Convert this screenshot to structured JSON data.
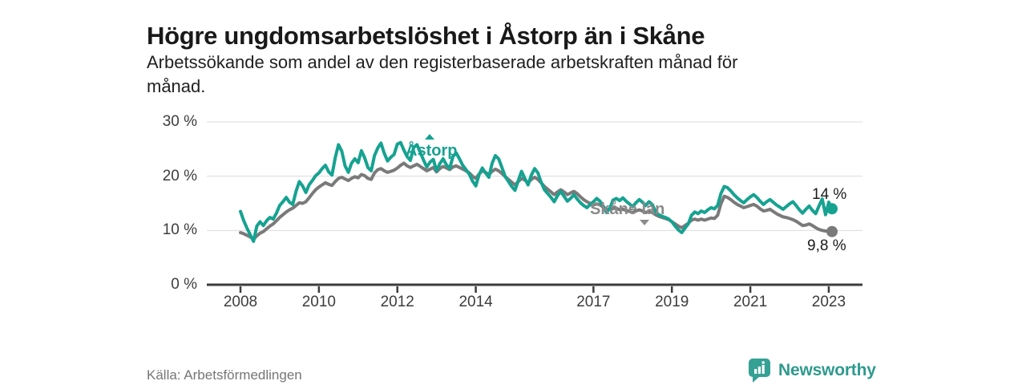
{
  "header": {
    "title": "Högre ungdomsarbetslöshet i Åstorp än i Skåne",
    "subtitle_lines": [
      "Arbetssökande som andel av den registerbaserade arbetskraften månad för",
      "månad."
    ]
  },
  "chart_data": {
    "type": "line",
    "title": "Högre ungdomsarbetslöshet i Åstorp än i Skåne",
    "xlabel": "",
    "ylabel": "",
    "ylim": [
      0,
      30
    ],
    "grid": "horizontal",
    "legend_position": "inline-labels",
    "frequency": "monthly",
    "start": "2008-01",
    "start_year": 2008,
    "colors": {
      "grid": "#dcdcdc",
      "axis": "#3c3c3c",
      "accent_teal": "#16a291",
      "line_gray": "#7a7a7a"
    },
    "y_ticks": [
      {
        "label": "30 %",
        "value": 30
      },
      {
        "label": "20 %",
        "value": 20
      },
      {
        "label": "10 %",
        "value": 10
      },
      {
        "label": "0 %",
        "value": 0
      }
    ],
    "x_ticks": [
      {
        "label": "2008",
        "year": 2008
      },
      {
        "label": "2010",
        "year": 2010
      },
      {
        "label": "2012",
        "year": 2012
      },
      {
        "label": "2014",
        "year": 2014
      },
      {
        "label": "2017",
        "year": 2017
      },
      {
        "label": "2019",
        "year": 2019
      },
      {
        "label": "2021",
        "year": 2021
      },
      {
        "label": "2023",
        "year": 2023
      }
    ],
    "series": [
      {
        "name": "Skåne län",
        "color": "#7a7a7a",
        "end_label": "9,8 %",
        "end_value": 9.8,
        "values": [
          9.6,
          9.4,
          9.1,
          8.8,
          8.4,
          9.0,
          9.5,
          9.8,
          10.3,
          10.8,
          11.2,
          11.8,
          12.4,
          12.9,
          13.4,
          13.8,
          14.1,
          14.6,
          15.1,
          15.0,
          15.3,
          16.0,
          16.8,
          17.5,
          18.0,
          18.4,
          18.8,
          18.5,
          18.3,
          19.0,
          19.6,
          19.8,
          19.5,
          19.2,
          19.6,
          19.9,
          19.7,
          20.3,
          20.1,
          19.6,
          19.4,
          20.6,
          21.2,
          21.4,
          21.0,
          20.7,
          20.9,
          21.1,
          21.5,
          22.0,
          22.4,
          21.9,
          21.6,
          21.9,
          22.2,
          21.8,
          21.4,
          21.0,
          21.3,
          21.6,
          20.8,
          21.4,
          21.8,
          21.5,
          21.2,
          21.7,
          21.9,
          21.6,
          21.3,
          21.0,
          20.6,
          20.0,
          19.6,
          20.4,
          21.0,
          20.7,
          20.3,
          20.9,
          21.3,
          21.0,
          20.5,
          19.9,
          19.4,
          18.9,
          18.4,
          19.0,
          19.6,
          19.3,
          18.8,
          19.4,
          19.8,
          19.4,
          18.8,
          18.1,
          17.6,
          17.1,
          16.6,
          17.1,
          17.5,
          17.1,
          16.6,
          16.9,
          17.2,
          16.8,
          16.2,
          15.7,
          15.3,
          15.0,
          14.7,
          14.9,
          14.7,
          14.3,
          13.8,
          14.0,
          14.3,
          14.1,
          13.8,
          13.9,
          13.7,
          13.5,
          13.3,
          13.6,
          13.8,
          13.6,
          13.3,
          13.5,
          13.3,
          12.9,
          12.6,
          12.4,
          12.2,
          12.0,
          11.6,
          11.2,
          10.8,
          10.5,
          10.9,
          11.3,
          11.9,
          12.1,
          11.9,
          12.1,
          11.9,
          12.1,
          12.3,
          12.2,
          12.8,
          14.9,
          16.3,
          16.1,
          15.7,
          15.2,
          14.8,
          14.5,
          14.2,
          14.4,
          14.6,
          14.8,
          14.5,
          14.0,
          13.6,
          13.7,
          13.9,
          13.5,
          13.1,
          12.8,
          12.5,
          12.4,
          12.2,
          12.0,
          11.7,
          11.3,
          10.9,
          11.0,
          11.2,
          10.9,
          10.5,
          10.2,
          10.0,
          9.9,
          9.8,
          9.8
        ]
      },
      {
        "name": "Åstorp",
        "color": "#16a291",
        "end_label": "14 %",
        "end_value": 14.0,
        "values": [
          13.5,
          11.8,
          10.4,
          9.2,
          8.0,
          10.8,
          11.6,
          10.9,
          11.8,
          12.4,
          12.1,
          13.2,
          14.6,
          15.3,
          16.1,
          15.2,
          14.8,
          17.2,
          19.0,
          18.2,
          17.0,
          18.4,
          19.2,
          20.1,
          20.6,
          21.4,
          22.0,
          20.8,
          20.2,
          23.4,
          25.8,
          24.6,
          21.9,
          20.7,
          22.4,
          23.2,
          22.5,
          24.7,
          23.4,
          21.6,
          21.0,
          23.8,
          25.2,
          26.1,
          24.2,
          22.8,
          23.5,
          24.0,
          25.9,
          26.2,
          24.8,
          23.6,
          22.9,
          25.3,
          25.8,
          24.4,
          23.0,
          21.7,
          22.6,
          23.1,
          21.0,
          22.3,
          23.2,
          22.1,
          21.4,
          23.6,
          24.3,
          23.2,
          22.0,
          21.2,
          20.4,
          19.1,
          18.2,
          20.3,
          21.5,
          20.6,
          19.8,
          22.4,
          23.8,
          23.2,
          21.6,
          19.9,
          19.0,
          18.1,
          17.4,
          19.2,
          20.9,
          19.6,
          18.4,
          20.2,
          21.4,
          20.6,
          18.9,
          17.5,
          16.8,
          16.1,
          15.3,
          16.4,
          17.2,
          16.3,
          15.4,
          15.9,
          16.6,
          15.8,
          15.1,
          14.6,
          14.2,
          14.8,
          15.3,
          15.9,
          15.4,
          14.5,
          13.3,
          14.1,
          15.6,
          15.9,
          15.5,
          16.0,
          15.4,
          14.9,
          14.4,
          15.1,
          15.7,
          15.2,
          14.6,
          15.3,
          14.8,
          13.4,
          12.9,
          12.6,
          12.4,
          12.1,
          11.6,
          10.8,
          10.1,
          9.6,
          10.4,
          11.2,
          12.8,
          13.4,
          13.1,
          13.6,
          13.3,
          13.8,
          14.2,
          14.0,
          14.6,
          16.8,
          18.1,
          17.9,
          17.3,
          16.6,
          16.0,
          15.5,
          15.1,
          15.7,
          16.2,
          16.6,
          16.1,
          15.4,
          14.8,
          15.3,
          15.7,
          15.2,
          14.7,
          14.3,
          13.9,
          14.4,
          14.9,
          15.3,
          14.6,
          13.8,
          13.2,
          13.9,
          14.5,
          13.7,
          13.1,
          14.5,
          15.8,
          12.9,
          15.2,
          14.0
        ]
      }
    ]
  },
  "footer": {
    "source": "Källa: Arbetsförmedlingen",
    "brand": "Newsworthy"
  }
}
